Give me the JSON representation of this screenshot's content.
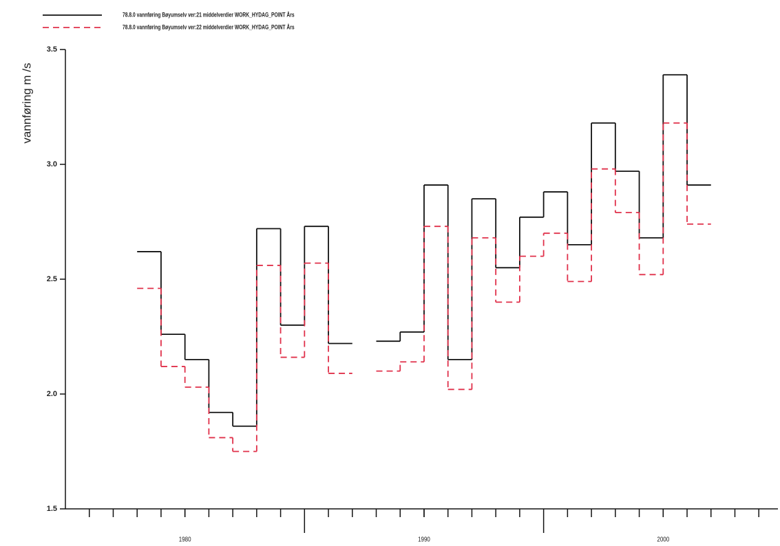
{
  "chart_data": {
    "type": "step",
    "y_label": "vannføring  m /s",
    "x": [
      1978,
      1979,
      1980,
      1981,
      1982,
      1983,
      1984,
      1985,
      1986,
      1987,
      1988,
      1989,
      1990,
      1991,
      1992,
      1993,
      1994,
      1995,
      1996,
      1997,
      1998,
      1999,
      2000,
      2001
    ],
    "series": [
      {
        "name": "78.8.0 vannføring Bøyumselv ver:21 middelverdier WORK_HYDAG_POINT Års",
        "color": "#111111",
        "dash": "solid",
        "values": [
          2.62,
          2.26,
          2.15,
          1.92,
          1.86,
          2.72,
          2.3,
          2.73,
          2.22,
          null,
          2.23,
          2.27,
          2.91,
          2.15,
          2.85,
          2.55,
          2.77,
          2.88,
          2.65,
          3.18,
          2.97,
          2.68,
          3.39,
          2.91
        ]
      },
      {
        "name": "78.8.0 vannføring Bøyumselv ver:22 middelverdier WORK_HYDAG_POINT Års",
        "color": "#e0304a",
        "dash": "dashed",
        "values": [
          2.46,
          2.12,
          2.03,
          1.81,
          1.75,
          2.56,
          2.16,
          2.57,
          2.09,
          null,
          2.1,
          2.14,
          2.73,
          2.02,
          2.68,
          2.4,
          2.6,
          2.7,
          2.49,
          2.98,
          2.79,
          2.52,
          3.18,
          2.74
        ]
      }
    ],
    "xlim": [
      1975,
      2004.8
    ],
    "xticks": [
      1980,
      1990,
      2000
    ],
    "ylim": [
      1.5,
      3.5
    ],
    "yticks": [
      1.5,
      {
        "value": 2,
        "label": "2.0"
      },
      2.5,
      {
        "value": 3,
        "label": "3.0"
      },
      3.5
    ],
    "legend": "top-left"
  }
}
